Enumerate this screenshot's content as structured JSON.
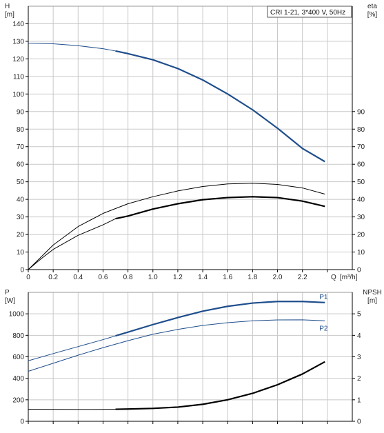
{
  "chart_data": [
    {
      "id": "top",
      "type": "line",
      "legend_text": "CRI 1-21, 3*400 V, 50Hz",
      "left_axis": {
        "label": "H",
        "unit": "[m]",
        "ylim": [
          0,
          150
        ],
        "ticks": [
          0,
          10,
          20,
          30,
          40,
          50,
          60,
          70,
          80,
          90,
          100,
          110,
          120,
          130,
          140
        ]
      },
      "right_axis": {
        "label": "eta",
        "unit": "[%]",
        "ylim": [
          0,
          150
        ],
        "ticks": [
          0,
          10,
          20,
          30,
          40,
          50,
          60,
          70,
          80,
          90
        ]
      },
      "x_axis": {
        "label": "Q",
        "unit": "[m³/h]",
        "xlim": [
          0,
          2.6
        ],
        "ticks": [
          0,
          0.2,
          0.4,
          0.6,
          0.8,
          1.0,
          1.2,
          1.4,
          1.6,
          1.8,
          2.0,
          2.2
        ],
        "tick_labels": [
          "0",
          "0.2",
          "0.4",
          "0.6",
          "0.8",
          "1.0",
          "1.2",
          "1.4",
          "1.6",
          "1.8",
          "2.0",
          "2.2"
        ]
      },
      "series": [
        {
          "key": "H",
          "color": "#1f4e8c",
          "x": [
            0,
            0.2,
            0.4,
            0.6,
            0.7,
            0.8,
            1.0,
            1.2,
            1.4,
            1.6,
            1.8,
            2.0,
            2.2,
            2.38
          ],
          "y": [
            129,
            128.6,
            127.5,
            125.8,
            124.5,
            123,
            119.5,
            114.5,
            108,
            100,
            91,
            80.5,
            69,
            61.5
          ],
          "thin_until_x": 0.7
        },
        {
          "key": "eta_total",
          "color": "#000000",
          "x": [
            0.7,
            0.8,
            1.0,
            1.2,
            1.4,
            1.6,
            1.8,
            2.0,
            2.2,
            2.38
          ],
          "y": [
            29,
            30.5,
            34.5,
            37.5,
            39.8,
            41,
            41.5,
            41,
            39,
            36
          ]
        },
        {
          "key": "eta_extrapolated",
          "color": "#000000",
          "x": [
            0,
            0.1,
            0.2,
            0.4,
            0.6,
            0.7
          ],
          "y": [
            0,
            6,
            11.5,
            19.5,
            25.5,
            29
          ]
        },
        {
          "key": "eta_pump",
          "color": "#000000",
          "x": [
            0,
            0.2,
            0.4,
            0.6,
            0.8,
            1.0,
            1.2,
            1.4,
            1.6,
            1.8,
            2.0,
            2.2,
            2.38
          ],
          "y": [
            0,
            14,
            24.5,
            32,
            37.5,
            41.5,
            44.8,
            47.3,
            48.8,
            49.2,
            48.5,
            46.5,
            43
          ]
        }
      ]
    },
    {
      "id": "bottom",
      "type": "line",
      "left_axis": {
        "label": "P",
        "unit": "[W]",
        "ylim": [
          0,
          1200
        ],
        "ticks": [
          0,
          200,
          400,
          600,
          800,
          1000
        ]
      },
      "right_axis": {
        "label": "NPSH",
        "unit": "[m]",
        "ylim": [
          0,
          6
        ],
        "ticks": [
          0,
          1,
          2,
          3,
          4,
          5
        ]
      },
      "x_axis": {
        "xlim": [
          0,
          2.6
        ]
      },
      "series": [
        {
          "key": "P1",
          "label": "P1",
          "color": "#1f4e8c",
          "x": [
            0,
            0.2,
            0.4,
            0.6,
            0.7,
            0.8,
            1.0,
            1.2,
            1.4,
            1.6,
            1.8,
            2.0,
            2.2,
            2.38
          ],
          "y": [
            563,
            630,
            695,
            760,
            795,
            830,
            900,
            965,
            1025,
            1070,
            1100,
            1115,
            1115,
            1105
          ],
          "thin_until_x": 0.7
        },
        {
          "key": "P2",
          "label": "P2",
          "color": "#1f4e8c",
          "x": [
            0,
            0.2,
            0.4,
            0.6,
            0.8,
            1.0,
            1.2,
            1.4,
            1.6,
            1.8,
            2.0,
            2.2,
            2.38
          ],
          "y": [
            465,
            540,
            615,
            685,
            750,
            810,
            855,
            892,
            918,
            935,
            943,
            944,
            935
          ]
        },
        {
          "key": "NPSH",
          "color": "#000000",
          "axis": "right",
          "x": [
            0,
            0.5,
            0.7,
            0.8,
            1.0,
            1.2,
            1.4,
            1.6,
            1.8,
            2.0,
            2.2,
            2.38
          ],
          "y": [
            0.56,
            0.55,
            0.56,
            0.57,
            0.6,
            0.66,
            0.79,
            1.0,
            1.3,
            1.7,
            2.2,
            2.77
          ],
          "thin_until_x": 0.7
        }
      ]
    }
  ]
}
